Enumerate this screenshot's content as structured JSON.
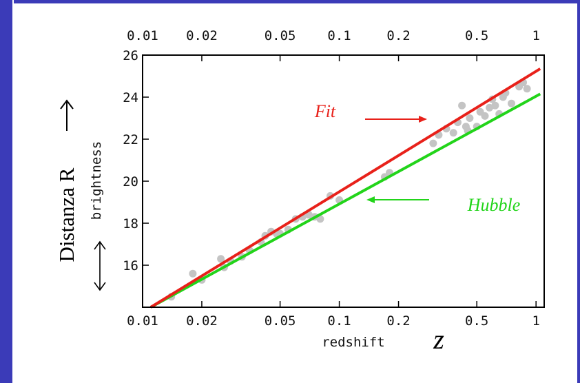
{
  "slide": {
    "ylabel_outer": "Distanza R",
    "xlabel_outer": "z"
  },
  "colors": {
    "frame": "#3b3bb8",
    "fit": "#e8211a",
    "hubble": "#22d41a",
    "points": "#c4c4c4"
  },
  "chart_data": {
    "type": "scatter",
    "title": "",
    "xlabel": "redshift",
    "ylabel": "brightness",
    "xscale": "log",
    "xlim": [
      0.01,
      1.1
    ],
    "ylim": [
      14,
      26
    ],
    "xticks": [
      0.01,
      0.02,
      0.05,
      0.1,
      0.2,
      0.5,
      1
    ],
    "xtick_labels": [
      "0.01",
      "0.02",
      "0.05",
      "0.1",
      "0.2",
      "0.5",
      "1"
    ],
    "yticks": [
      16,
      18,
      20,
      22,
      24,
      26
    ],
    "ytick_labels": [
      "16",
      "18",
      "20",
      "22",
      "24",
      "26"
    ],
    "grid": false,
    "series": [
      {
        "name": "Fit",
        "kind": "line",
        "x": [
          0.011,
          1.05
        ],
        "y": [
          14.0,
          25.35
        ]
      },
      {
        "name": "Hubble",
        "kind": "line",
        "x": [
          0.011,
          1.05
        ],
        "y": [
          14.0,
          24.15
        ]
      },
      {
        "name": "",
        "kind": "points",
        "x": [
          0.014,
          0.018,
          0.02,
          0.025,
          0.026,
          0.028,
          0.032,
          0.035,
          0.04,
          0.042,
          0.045,
          0.048,
          0.05,
          0.055,
          0.06,
          0.065,
          0.07,
          0.075,
          0.08,
          0.09,
          0.1,
          0.17,
          0.18,
          0.3,
          0.32,
          0.35,
          0.38,
          0.4,
          0.42,
          0.44,
          0.45,
          0.46,
          0.5,
          0.52,
          0.55,
          0.58,
          0.6,
          0.62,
          0.65,
          0.68,
          0.7,
          0.75,
          0.82,
          0.86,
          0.9
        ],
        "y": [
          14.5,
          15.6,
          15.3,
          16.3,
          15.9,
          16.2,
          16.4,
          16.7,
          17.1,
          17.4,
          17.6,
          17.5,
          17.5,
          17.7,
          18.2,
          18.3,
          18.4,
          18.3,
          18.2,
          19.3,
          19.1,
          20.2,
          20.4,
          21.8,
          22.2,
          22.5,
          22.3,
          22.8,
          23.6,
          22.6,
          22.4,
          23.0,
          22.6,
          23.3,
          23.1,
          23.5,
          23.9,
          23.6,
          23.2,
          24.0,
          24.2,
          23.7,
          24.5,
          24.7,
          24.4
        ]
      }
    ],
    "annotations": [
      {
        "text": "Fit",
        "color": "#e8211a"
      },
      {
        "text": "Hubble",
        "color": "#22d41a"
      }
    ]
  }
}
